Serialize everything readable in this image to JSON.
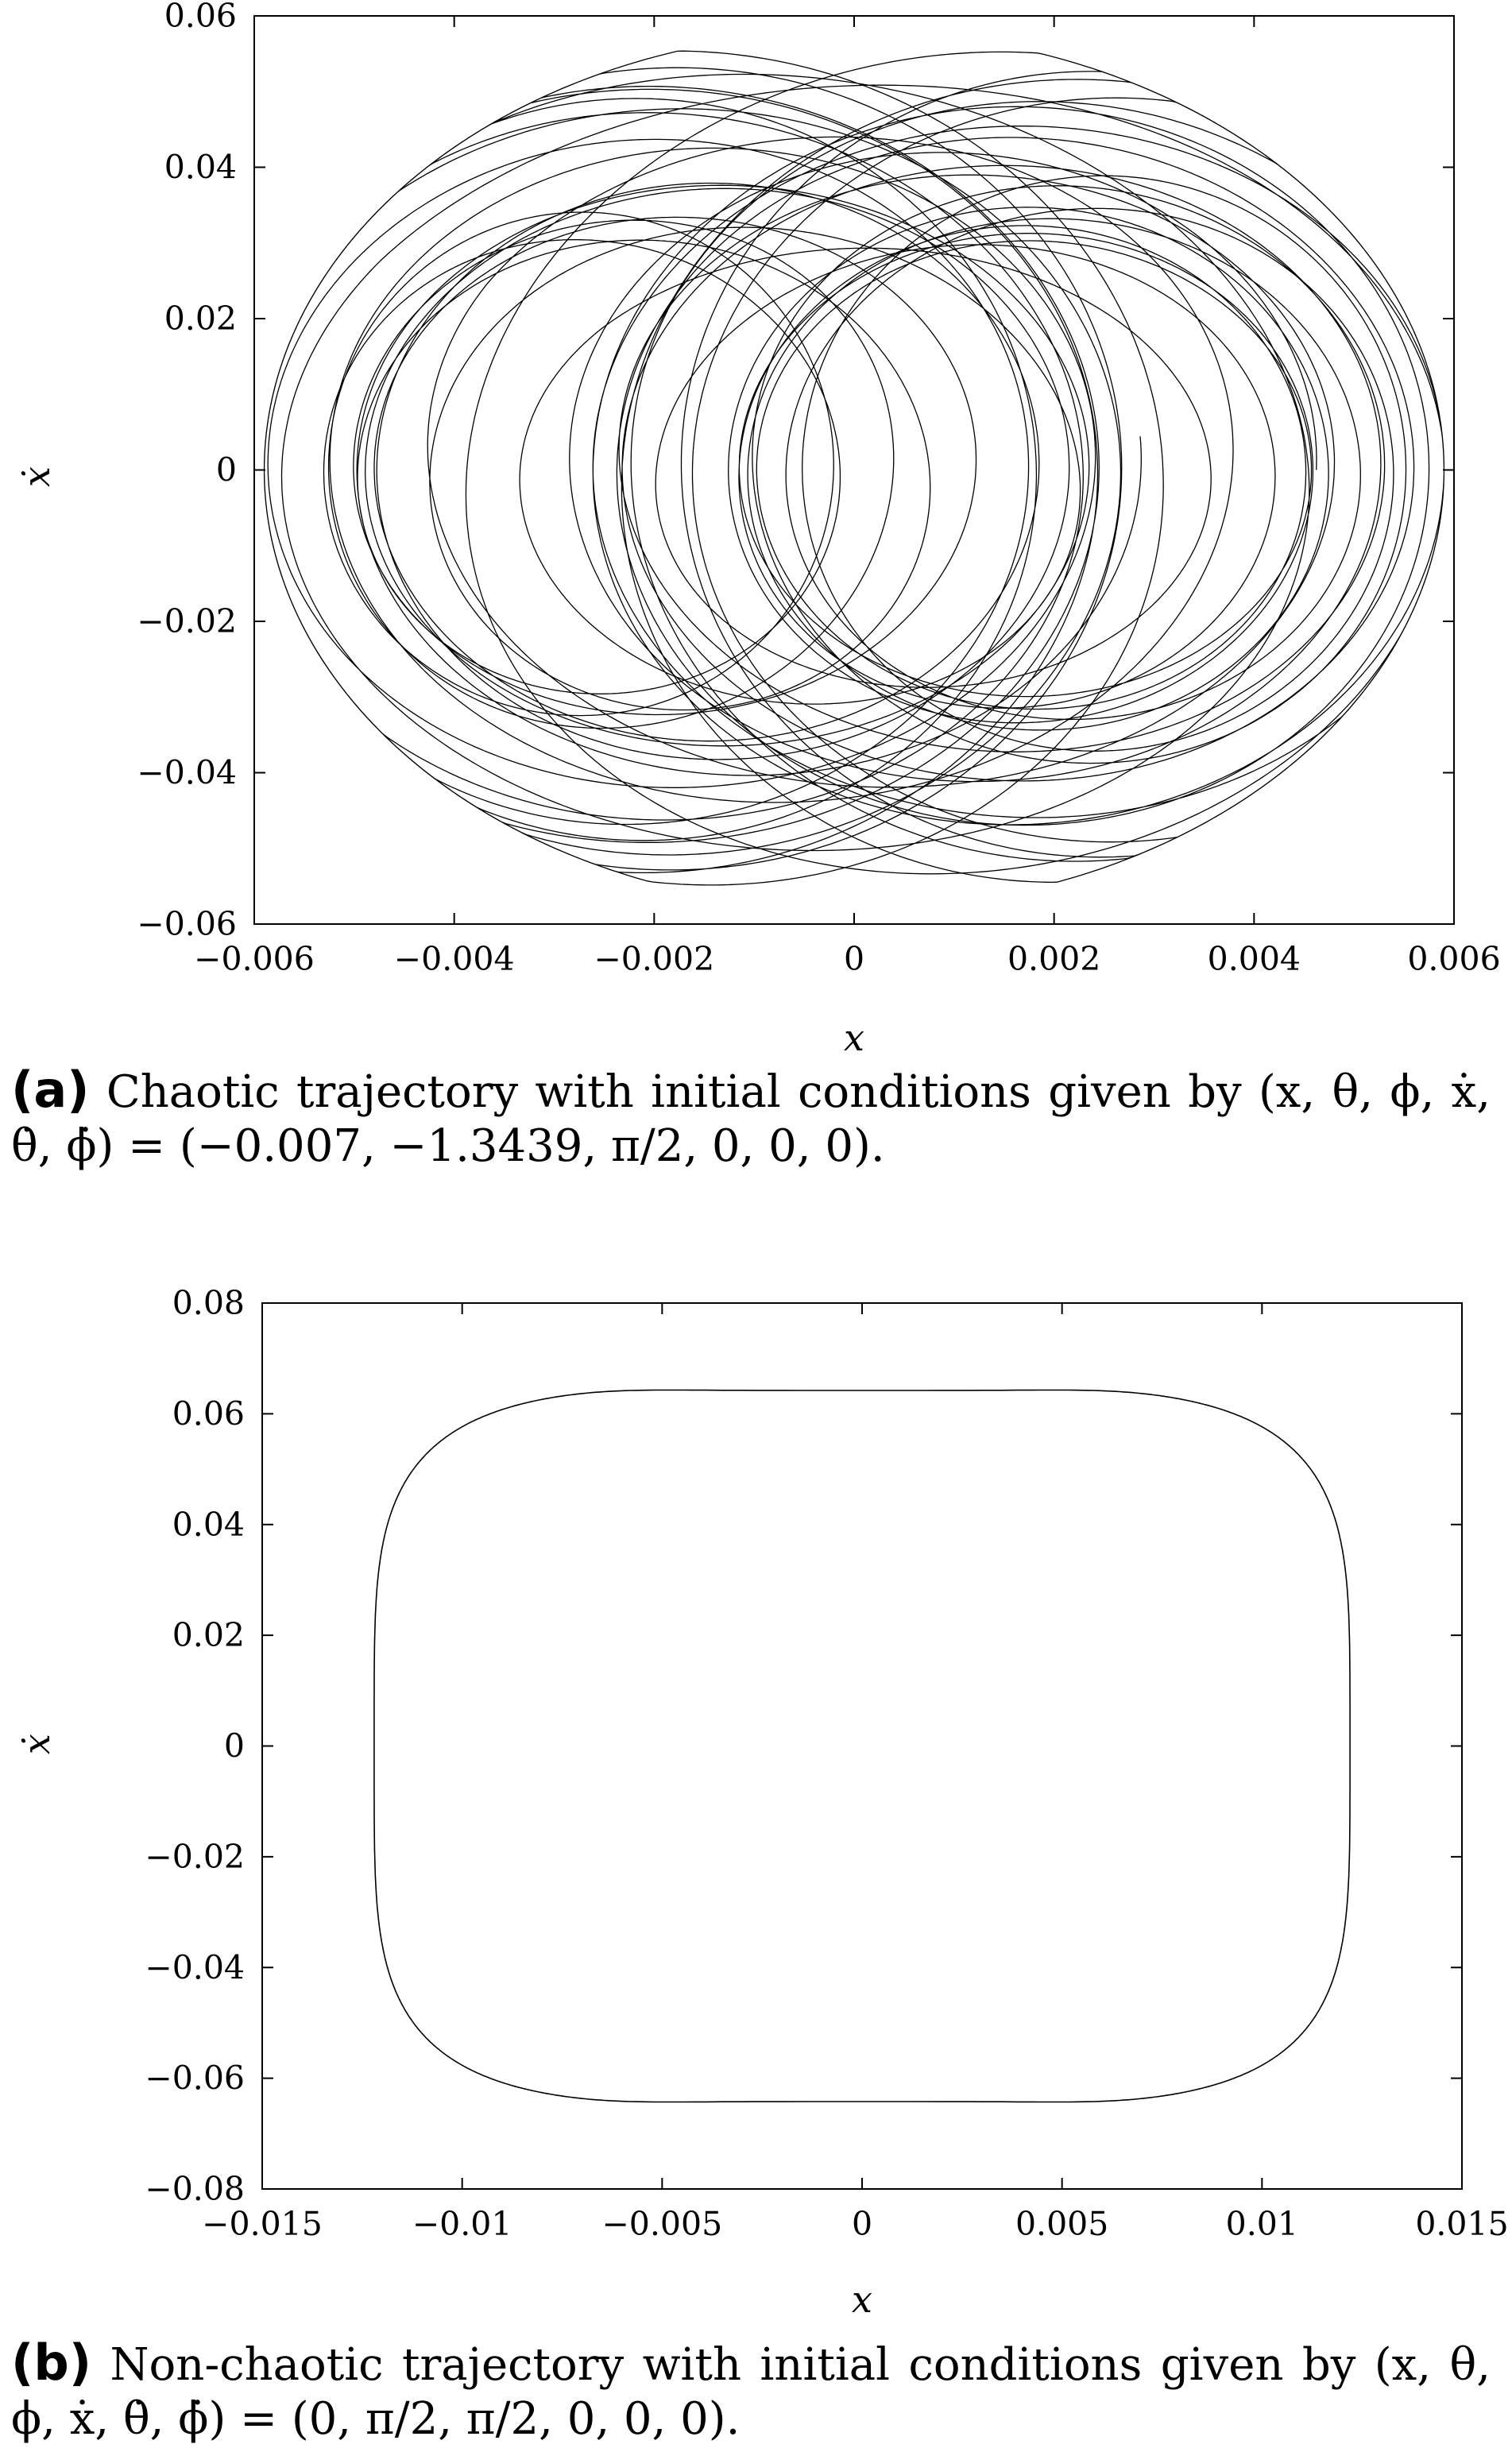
{
  "chart_data": [
    {
      "type": "line",
      "xlabel": "x",
      "ylabel": "ẋ",
      "xlim": [
        -0.006,
        0.006
      ],
      "ylim": [
        -0.06,
        0.06
      ],
      "xticks": [
        "−0.006",
        "−0.004",
        "−0.002",
        "0",
        "0.002",
        "0.004",
        "0.006"
      ],
      "xtick_values": [
        -0.006,
        -0.004,
        -0.002,
        0,
        0.002,
        0.004,
        0.006
      ],
      "yticks": [
        "−0.06",
        "−0.04",
        "−0.02",
        "0",
        "0.02",
        "0.04",
        "0.06"
      ],
      "ytick_values": [
        -0.06,
        -0.04,
        -0.02,
        0,
        0.02,
        0.04,
        0.06
      ],
      "x_extent": [
        -0.0059,
        0.0059
      ],
      "y_extent": [
        -0.058,
        0.058
      ],
      "grid": false,
      "line_color": "#000000",
      "caption_tag": "(a)",
      "caption": "Chaotic trajectory with initial conditions given by (x, θ, ϕ, ẋ, θ̇, ϕ̇) = (−0.007, −1.3439, π/2, 0, 0, 0)."
    },
    {
      "type": "line",
      "xlabel": "x",
      "ylabel": "ẋ",
      "xlim": [
        -0.015,
        0.015
      ],
      "ylim": [
        -0.08,
        0.08
      ],
      "xticks": [
        "−0.015",
        "−0.01",
        "−0.005",
        "0",
        "0.005",
        "0.01",
        "0.015"
      ],
      "xtick_values": [
        -0.015,
        -0.01,
        -0.005,
        0,
        0.005,
        0.01,
        0.015
      ],
      "yticks": [
        "−0.08",
        "−0.06",
        "−0.04",
        "−0.02",
        "0",
        "0.02",
        "0.04",
        "0.06",
        "0.08"
      ],
      "ytick_values": [
        -0.08,
        -0.06,
        -0.04,
        -0.02,
        0,
        0.02,
        0.04,
        0.06,
        0.08
      ],
      "x_extent": [
        -0.0122,
        0.0122
      ],
      "y_extent": [
        -0.065,
        0.065
      ],
      "grid": false,
      "line_color": "#000000",
      "caption_tag": "(b)",
      "caption": "Non-chaotic trajectory with initial conditions given by (x, θ, ϕ, ẋ, θ̇, ϕ̇) = (0, π/2, π/2, 0, 0, 0)."
    }
  ]
}
